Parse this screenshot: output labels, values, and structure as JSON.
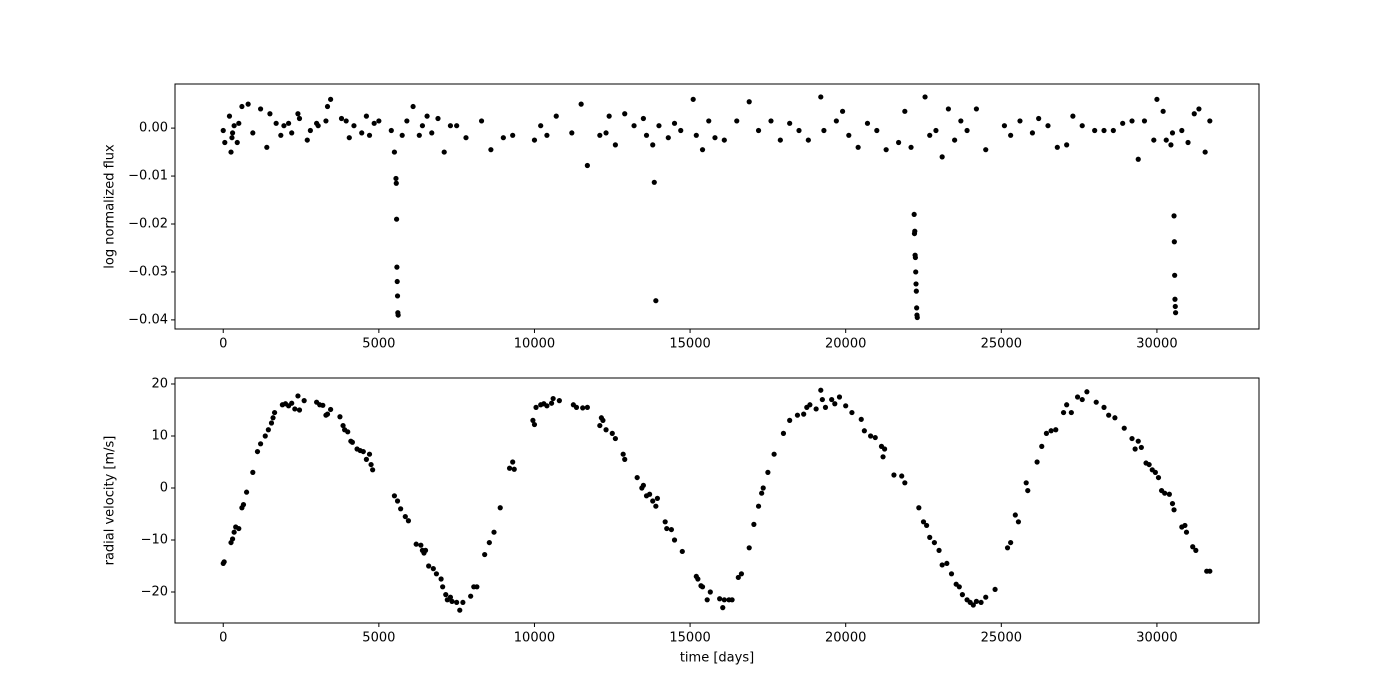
{
  "chart_data": [
    {
      "type": "scatter",
      "ylabel": "log normalized flux",
      "color": "#000000",
      "xlim": [
        -1550,
        33280
      ],
      "ylim": [
        -0.0419,
        0.0092
      ],
      "xticks": [
        0,
        5000,
        10000,
        15000,
        20000,
        25000,
        30000
      ],
      "yticks": [
        {
          "value": 0,
          "label": "0.00"
        },
        {
          "value": -0.01,
          "label": "−0.01"
        },
        {
          "value": -0.02,
          "label": "−0.02"
        },
        {
          "value": -0.03,
          "label": "−0.03"
        },
        {
          "value": -0.04,
          "label": "−0.04"
        }
      ],
      "x": [
        0,
        50,
        200,
        250,
        280,
        300,
        350,
        450,
        500,
        600,
        800,
        950,
        1200,
        1400,
        1500,
        1700,
        1850,
        1950,
        2100,
        2200,
        2400,
        2450,
        2700,
        2800,
        3000,
        3050,
        3300,
        3350,
        3450,
        3800,
        3950,
        4050,
        4200,
        4450,
        4600,
        4700,
        4850,
        5000,
        5400,
        5500,
        5550,
        5560,
        5570,
        5580,
        5590,
        5600,
        5610,
        5620,
        5750,
        5900,
        6100,
        6300,
        6400,
        6550,
        6700,
        6900,
        7100,
        7300,
        7500,
        7800,
        8300,
        8600,
        9000,
        9300,
        10000,
        10200,
        10400,
        10700,
        11200,
        11500,
        11700,
        12100,
        12300,
        12400,
        12600,
        12900,
        13200,
        13500,
        13600,
        13800,
        13850,
        13900,
        14000,
        14300,
        14500,
        14700,
        15100,
        15200,
        15400,
        15600,
        15800,
        16100,
        16500,
        16900,
        17200,
        17600,
        17900,
        18200,
        18500,
        18800,
        19200,
        19300,
        19700,
        19900,
        20100,
        20400,
        20700,
        21000,
        21300,
        21700,
        21900,
        22100,
        22200,
        22210,
        22220,
        22230,
        22240,
        22250,
        22260,
        22270,
        22280,
        22290,
        22300,
        22550,
        22700,
        22900,
        23100,
        23300,
        23500,
        23700,
        23900,
        24200,
        24500,
        25100,
        25300,
        25600,
        26000,
        26200,
        26500,
        26800,
        27100,
        27300,
        27600,
        28000,
        28300,
        28600,
        28900,
        29200,
        29400,
        29600,
        29900,
        30000,
        30200,
        30300,
        30450,
        30500,
        30550,
        30560,
        30570,
        30580,
        30590,
        30600,
        30800,
        31000,
        31200,
        31350,
        31550,
        31700
      ],
      "values": [
        -0.0005,
        -0.003,
        0.0025,
        -0.005,
        -0.002,
        -0.001,
        0.0005,
        -0.003,
        0.001,
        0.0045,
        0.005,
        -0.001,
        0.004,
        -0.004,
        0.003,
        0.001,
        -0.0015,
        0.0005,
        0.001,
        -0.001,
        0.003,
        0.002,
        -0.0025,
        -0.0005,
        0.001,
        0.0005,
        0.0015,
        0.0045,
        0.006,
        0.002,
        0.0015,
        -0.002,
        0.0005,
        -0.001,
        0.0025,
        -0.0015,
        0.001,
        0.0015,
        -0.0005,
        -0.005,
        -0.0105,
        -0.0115,
        -0.019,
        -0.029,
        -0.032,
        -0.035,
        -0.0385,
        -0.039,
        -0.0015,
        0.0015,
        0.0045,
        -0.0015,
        0.0005,
        0.0025,
        -0.001,
        0.002,
        -0.005,
        0.0005,
        0.0005,
        -0.002,
        0.0015,
        -0.0045,
        -0.002,
        -0.0015,
        -0.0025,
        0.0005,
        -0.0015,
        0.0025,
        -0.001,
        0.005,
        -0.0078,
        -0.0015,
        -0.001,
        0.0025,
        -0.0035,
        0.003,
        0.0005,
        0.002,
        -0.0015,
        -0.0035,
        -0.0113,
        -0.036,
        0.0005,
        -0.002,
        0.001,
        -0.0005,
        0.006,
        -0.0015,
        -0.0045,
        0.0015,
        -0.002,
        -0.0025,
        0.0015,
        0.0055,
        -0.0005,
        0.0015,
        -0.0025,
        0.001,
        -0.0005,
        -0.0025,
        0.0065,
        -0.0005,
        0.0015,
        0.0035,
        -0.0015,
        -0.004,
        0.001,
        -0.0005,
        -0.0045,
        -0.003,
        0.0035,
        -0.004,
        -0.018,
        -0.022,
        -0.0215,
        -0.0265,
        -0.027,
        -0.03,
        -0.0325,
        -0.034,
        -0.0375,
        -0.039,
        -0.0395,
        0.0065,
        -0.0015,
        -0.0005,
        -0.006,
        0.004,
        -0.0025,
        0.0015,
        -0.0005,
        0.004,
        -0.0045,
        0.0005,
        -0.0015,
        0.0015,
        -0.001,
        0.002,
        0.0005,
        -0.004,
        -0.0035,
        0.0025,
        0.0005,
        -0.0005,
        -0.0005,
        -0.0005,
        0.001,
        0.0015,
        -0.0065,
        0.0015,
        -0.0025,
        0.006,
        0.0035,
        -0.0025,
        -0.0035,
        -0.001,
        -0.0183,
        -0.0237,
        -0.0307,
        -0.0357,
        -0.0372,
        -0.0385,
        -0.0005,
        -0.003,
        0.003,
        0.004,
        -0.005,
        0.0015
      ]
    },
    {
      "type": "scatter",
      "ylabel": "radial velocity [m/s]",
      "xlabel": "time [days]",
      "color": "#000000",
      "xlim": [
        -1550,
        33280
      ],
      "ylim": [
        -25.96,
        21.15
      ],
      "xticks": [
        0,
        5000,
        10000,
        15000,
        20000,
        25000,
        30000
      ],
      "yticks": [
        {
          "value": -20,
          "label": "−20"
        },
        {
          "value": -10,
          "label": "−10"
        },
        0,
        10,
        20
      ],
      "x": [
        0,
        30,
        250,
        300,
        350,
        400,
        500,
        600,
        650,
        750,
        950,
        1100,
        1200,
        1350,
        1450,
        1550,
        1600,
        1650,
        1900,
        2000,
        2100,
        2200,
        2300,
        2400,
        2450,
        2600,
        3000,
        3100,
        3200,
        3300,
        3350,
        3450,
        3750,
        3850,
        3900,
        4000,
        4100,
        4150,
        4300,
        4400,
        4500,
        4600,
        4700,
        4750,
        4800,
        5500,
        5600,
        5700,
        5850,
        5950,
        6200,
        6350,
        6400,
        6450,
        6500,
        6600,
        6750,
        6850,
        7000,
        7050,
        7150,
        7200,
        7300,
        7350,
        7500,
        7600,
        7700,
        7950,
        8050,
        8150,
        8400,
        8550,
        8700,
        8900,
        9200,
        9300,
        9350,
        9950,
        10000,
        10050,
        10200,
        10300,
        10400,
        10550,
        10600,
        10800,
        11250,
        11350,
        11550,
        11700,
        12100,
        12150,
        12200,
        12300,
        12500,
        12600,
        12850,
        12900,
        13300,
        13450,
        13500,
        13600,
        13700,
        13800,
        13900,
        13950,
        14200,
        14250,
        14400,
        14500,
        14750,
        15200,
        15250,
        15350,
        15400,
        15550,
        15650,
        15950,
        16050,
        16100,
        16250,
        16350,
        16550,
        16650,
        16900,
        17050,
        17200,
        17300,
        17350,
        17500,
        17700,
        18000,
        18200,
        18450,
        18650,
        18750,
        18850,
        19050,
        19200,
        19250,
        19350,
        19550,
        19650,
        19800,
        20000,
        20200,
        20500,
        20600,
        20800,
        20950,
        21150,
        21200,
        21250,
        21550,
        21800,
        21900,
        22350,
        22500,
        22600,
        22700,
        22850,
        23000,
        23100,
        23250,
        23400,
        23550,
        23650,
        23750,
        23900,
        24000,
        24100,
        24200,
        24350,
        24500,
        24800,
        25200,
        25300,
        25450,
        25550,
        25800,
        25850,
        26150,
        26300,
        26450,
        26600,
        26750,
        27000,
        27100,
        27250,
        27450,
        27600,
        27750,
        28050,
        28300,
        28450,
        28650,
        28950,
        29200,
        29300,
        29400,
        29500,
        29650,
        29750,
        29850,
        29950,
        30050,
        30150,
        30250,
        30400,
        30500,
        30550,
        30800,
        30900,
        30950,
        31150,
        31250,
        31600,
        31700
      ],
      "values": [
        -14.5,
        -14.2,
        -10.5,
        -9.8,
        -8.5,
        -7.5,
        -7.8,
        -3.8,
        -3.2,
        -0.8,
        3,
        7,
        8.5,
        10,
        11.2,
        12.5,
        13.5,
        14.5,
        16,
        16.2,
        15.8,
        16.3,
        15.2,
        17.7,
        15,
        16.8,
        16.5,
        16,
        15.9,
        14,
        14.2,
        15.1,
        13.7,
        12,
        11.2,
        10.8,
        9,
        8.8,
        7.5,
        7.2,
        7,
        5.5,
        6.5,
        4.5,
        3.5,
        -1.5,
        -2.5,
        -4,
        -5.5,
        -6.3,
        -10.8,
        -11,
        -12,
        -12.5,
        -12,
        -15,
        -15.5,
        -16.5,
        -17.5,
        -19,
        -20.5,
        -21.5,
        -21,
        -21.8,
        -22,
        -23.5,
        -22,
        -20.8,
        -19,
        -19,
        -12.8,
        -10.5,
        -8.5,
        -3.8,
        3.8,
        5,
        3.6,
        13,
        12.2,
        15.5,
        16,
        16.2,
        15.8,
        16.3,
        17.2,
        16.8,
        16,
        15.5,
        15.4,
        15.5,
        12,
        13.5,
        13,
        11.2,
        10.5,
        9.5,
        6.5,
        5.5,
        2,
        0,
        0.5,
        -1.5,
        -1.2,
        -2.5,
        -3.5,
        -2,
        -6.5,
        -7.8,
        -8,
        -10,
        -12.2,
        -17,
        -17.5,
        -18.8,
        -19,
        -21.5,
        -20,
        -21.3,
        -23,
        -21.5,
        -21.5,
        -21.5,
        -17.2,
        -16.5,
        -11.5,
        -7,
        -3.5,
        -1,
        0,
        3,
        6.5,
        10.5,
        13,
        14,
        14.2,
        15.5,
        16,
        15.2,
        18.8,
        17,
        15.5,
        17,
        16.2,
        17.5,
        15.8,
        14.5,
        13.2,
        11,
        10,
        9.7,
        8,
        6,
        7.5,
        2.5,
        2.3,
        1,
        -3.8,
        -6.5,
        -7.2,
        -9.5,
        -10.5,
        -12,
        -14.8,
        -14.5,
        -16.5,
        -18.5,
        -19,
        -20.5,
        -21.5,
        -22,
        -22.5,
        -21.8,
        -22,
        -21,
        -19.5,
        -11.5,
        -10.5,
        -5.2,
        -6.5,
        1,
        -0.5,
        5,
        8,
        10.5,
        11,
        11.2,
        14.5,
        16,
        14.5,
        17.5,
        17,
        18.5,
        16.5,
        15.5,
        14,
        13.5,
        11.5,
        9.5,
        7.5,
        9,
        7.8,
        4.8,
        4.5,
        3.5,
        3,
        2,
        -0.5,
        -1,
        -1.2,
        -3,
        -4.2,
        -7.5,
        -7.2,
        -8.5,
        -11.3,
        -12,
        -16,
        -16
      ]
    }
  ]
}
